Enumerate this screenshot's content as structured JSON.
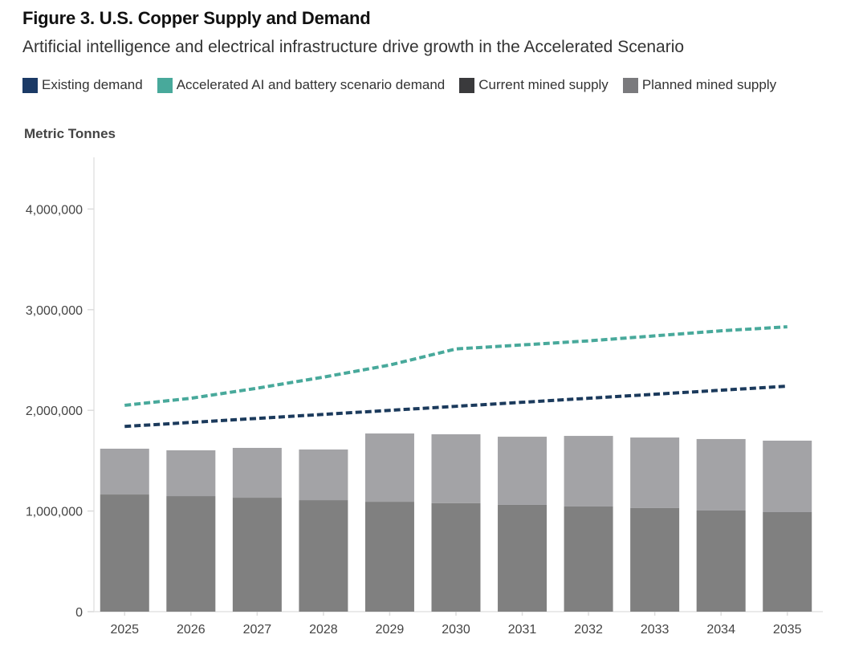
{
  "figure": {
    "title": "Figure 3. U.S. Copper Supply and Demand",
    "subtitle": "Artificial intelligence and electrical infrastructure drive growth in the Accelerated Scenario"
  },
  "legend": [
    {
      "label": "Existing demand",
      "color": "#1b3a66"
    },
    {
      "label": "Accelerated AI and battery scenario demand",
      "color": "#48a99b"
    },
    {
      "label": "Current mined supply",
      "color": "#3a3a3c"
    },
    {
      "label": "Planned mined supply",
      "color": "#7a7a7d"
    }
  ],
  "chart_data": {
    "type": "bar",
    "title": "Figure 3. U.S. Copper Supply and Demand",
    "subtitle": "Artificial intelligence and electrical infrastructure drive growth in the Accelerated Scenario",
    "xlabel": "",
    "ylabel": "Metric Tonnes",
    "ylim": [
      0,
      4500000
    ],
    "yticks": [
      0,
      1000000,
      2000000,
      3000000,
      4000000
    ],
    "ytick_labels": [
      "0",
      "1,000,000",
      "2,000,000",
      "3,000,000",
      "4,000,000"
    ],
    "grid": false,
    "legend_position": "top",
    "categories": [
      "2025",
      "2026",
      "2027",
      "2028",
      "2029",
      "2030",
      "2031",
      "2032",
      "2033",
      "2034",
      "2035"
    ],
    "bar_series": [
      {
        "name": "Current mined supply",
        "stacked": true,
        "color": "#808080",
        "values": [
          1164000,
          1148000,
          1132000,
          1108000,
          1092000,
          1077000,
          1061000,
          1045000,
          1029000,
          1005000,
          989000
        ]
      },
      {
        "name": "Planned mined supply",
        "stacked": true,
        "color": "#a3a3a6",
        "values": [
          455000,
          455000,
          495000,
          503000,
          678000,
          685000,
          677000,
          701000,
          701000,
          710000,
          710000
        ]
      }
    ],
    "line_series": [
      {
        "name": "Existing demand",
        "style": "dashed",
        "color": "#1b3a5c",
        "values": [
          1840000,
          1880000,
          1920000,
          1960000,
          2000000,
          2040000,
          2080000,
          2120000,
          2160000,
          2200000,
          2240000
        ]
      },
      {
        "name": "Accelerated AI and battery scenario demand",
        "style": "dashed",
        "color": "#48a99b",
        "values": [
          2050000,
          2120000,
          2220000,
          2330000,
          2450000,
          2610000,
          2650000,
          2690000,
          2740000,
          2790000,
          2830000
        ]
      }
    ]
  }
}
